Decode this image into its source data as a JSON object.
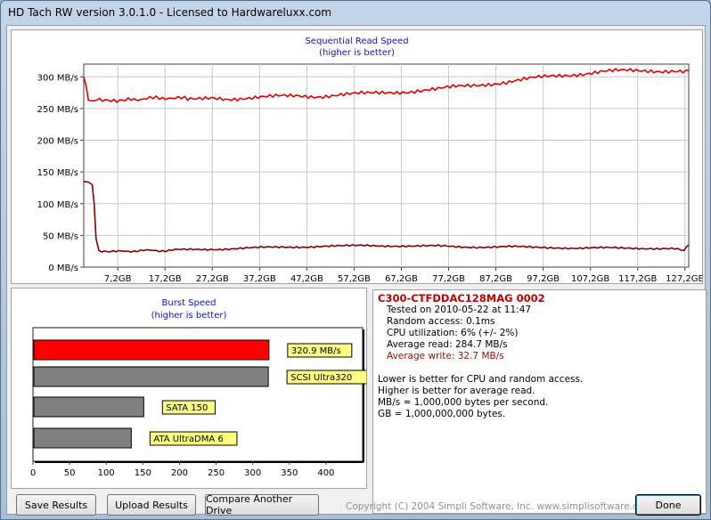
{
  "window": {
    "title": "HD Tach RW version 3.0.1.0 - Licensed to Hardwareluxx.com"
  },
  "chart_data": [
    {
      "type": "line",
      "title": "Sequential Read Speed",
      "subtitle": "(higher is better)",
      "x_tick_labels": [
        "7,2GB",
        "17,2GB",
        "27,2GB",
        "37,2GB",
        "47,2GB",
        "57,2GB",
        "67,2GB",
        "77,2GB",
        "87,2GB",
        "97,2GB",
        "107,2GB",
        "117,2GB",
        "127,2GB"
      ],
      "y_tick_labels": [
        "300 MB/s",
        "250 MB/s",
        "200 MB/s",
        "150 MB/s",
        "100 MB/s",
        "50 MB/s",
        "0 MB/s"
      ],
      "xlim": [
        0,
        128
      ],
      "ylim": [
        0,
        320
      ],
      "grid": true,
      "series": [
        {
          "color": "#e00000",
          "x": [
            0,
            0.5,
            1,
            2,
            4,
            7,
            10,
            14,
            18,
            22,
            27,
            30,
            35,
            40,
            45,
            50,
            55,
            60,
            65,
            70,
            75,
            80,
            85,
            90,
            95,
            100,
            105,
            110,
            115,
            120,
            125,
            128
          ],
          "y": [
            300,
            285,
            263,
            262,
            265,
            263,
            266,
            265,
            268,
            264,
            269,
            266,
            267,
            268,
            270,
            270,
            272,
            273,
            276,
            278,
            280,
            285,
            289,
            292,
            297,
            302,
            305,
            308,
            309,
            310,
            310,
            310
          ]
        },
        {
          "color": "#800000",
          "x": [
            0,
            1,
            1.8,
            2.2,
            2.6,
            3.2,
            5,
            8,
            12,
            16,
            20,
            25,
            30,
            35,
            40,
            45,
            50,
            55,
            60,
            65,
            70,
            75,
            80,
            85,
            90,
            95,
            100,
            105,
            110,
            115,
            120,
            125,
            127,
            128
          ],
          "y": [
            135,
            134,
            130,
            100,
            45,
            25,
            24,
            25,
            26,
            26,
            27,
            28,
            29,
            30,
            31,
            32,
            33,
            33,
            34,
            34,
            33,
            33,
            32,
            32,
            32,
            31,
            31,
            30,
            30,
            30,
            30,
            29,
            25,
            35
          ]
        }
      ]
    },
    {
      "type": "bar",
      "orientation": "horizontal",
      "title": "Burst Speed",
      "subtitle": "(higher is better)",
      "xlim": [
        0,
        450
      ],
      "x_ticks": [
        0,
        50,
        100,
        150,
        200,
        250,
        300,
        350,
        400
      ],
      "bars": [
        {
          "label": "320.9 MB/s",
          "value": 320.9,
          "color": "#ff0000"
        },
        {
          "label": "SCSI Ultra320",
          "value": 320,
          "color": "#808080"
        },
        {
          "label": "SATA 150",
          "value": 150,
          "color": "#808080"
        },
        {
          "label": "ATA UltraDMA 6",
          "value": 133,
          "color": "#808080"
        }
      ]
    }
  ],
  "info": {
    "drive_name": "C300-CTFDDAC128MAG 0002",
    "tested_on": "Tested on 2010-05-22 at 11:47",
    "random_access": "Random access: 0.1ms",
    "cpu_utilization": "CPU utilization: 6% (+/- 2%)",
    "average_read": "Average read: 284.7 MB/s",
    "average_write": "Average write: 32.7 MB/s",
    "notes": [
      "Lower is better for CPU and random access.",
      "Higher is better for average read.",
      "MB/s = 1,000,000 bytes per second.",
      "GB = 1,000,000,000 bytes."
    ]
  },
  "buttons": {
    "save": "Save Results",
    "upload": "Upload Results",
    "compare": "Compare Another Drive",
    "done": "Done"
  },
  "copyright": "Copyright (C) 2004 Simpli Software, Inc. www.simplisoftware.com"
}
